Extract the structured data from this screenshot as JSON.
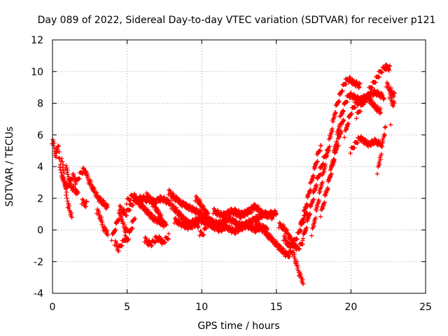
{
  "chart_data": {
    "type": "scatter",
    "title": "Day 089 of 2022, Sidereal Day-to-day VTEC variation (SDTVAR) for receiver p121",
    "xlabel": "GPS time / hours",
    "ylabel": "SDTVAR / TECUs",
    "xlim": [
      0,
      25
    ],
    "ylim": [
      -4,
      12
    ],
    "x_ticks": [
      0,
      5,
      10,
      15,
      20,
      25
    ],
    "y_ticks": [
      -4,
      -2,
      0,
      2,
      4,
      6,
      8,
      10,
      12
    ],
    "grid": true,
    "marker": "+",
    "color": "#ff0000",
    "series": [
      {
        "x": [
          0.0,
          0.05,
          0.1,
          0.15,
          0.2,
          0.25,
          0.3,
          0.35,
          0.4,
          0.5,
          0.6,
          0.7,
          0.8,
          0.9,
          1.0,
          1.1,
          1.2,
          1.3,
          1.4,
          1.5,
          1.6,
          1.7,
          1.8,
          1.9,
          2.0,
          2.1,
          2.2,
          2.3,
          2.4,
          2.5,
          2.6,
          2.7,
          2.8,
          2.9,
          3.0,
          3.1,
          3.2,
          3.3,
          3.4,
          3.5,
          3.6,
          3.7
        ],
        "y": [
          5.6,
          5.5,
          5.3,
          5.0,
          4.8,
          4.7,
          4.9,
          5.2,
          5.4,
          4.0,
          3.5,
          3.2,
          3.0,
          2.8,
          2.7,
          2.9,
          3.1,
          3.3,
          3.4,
          3.2,
          3.0,
          3.2,
          3.4,
          3.6,
          3.7,
          3.8,
          3.7,
          3.5,
          3.2,
          3.0,
          2.8,
          2.6,
          2.5,
          2.3,
          2.1,
          2.0,
          1.9,
          1.8,
          1.7,
          1.6,
          1.5,
          1.4
        ]
      },
      {
        "x": [
          0.6,
          0.65,
          0.7,
          0.75,
          0.8,
          0.85,
          0.9,
          0.95,
          1.0,
          1.05,
          1.1,
          1.15,
          1.2,
          1.25,
          1.3
        ],
        "y": [
          4.5,
          4.2,
          3.9,
          3.6,
          3.2,
          2.8,
          2.5,
          2.2,
          1.9,
          1.6,
          1.4,
          1.2,
          1.1,
          1.0,
          0.9
        ]
      },
      {
        "x": [
          0.9,
          1.0,
          1.1,
          1.2,
          1.3,
          1.4,
          1.5,
          1.6,
          1.7
        ],
        "y": [
          4.0,
          3.6,
          3.2,
          2.9,
          2.7,
          2.6,
          2.5,
          2.4,
          2.3
        ]
      },
      {
        "x": [
          2.0,
          2.1,
          2.2,
          2.3
        ],
        "y": [
          1.8,
          1.7,
          1.6,
          1.7
        ]
      },
      {
        "x": [
          3.0,
          3.1,
          3.2,
          3.3,
          3.4,
          3.5,
          3.6,
          3.7
        ],
        "y": [
          1.2,
          1.0,
          0.8,
          0.5,
          0.2,
          0.0,
          -0.1,
          -0.2
        ]
      },
      {
        "x": [
          4.0,
          4.1,
          4.2,
          4.3,
          4.4,
          4.5,
          4.6,
          4.7,
          4.8,
          4.9,
          5.0
        ],
        "y": [
          -0.5,
          -0.2,
          0.1,
          0.4,
          0.7,
          1.0,
          0.8,
          0.5,
          0.2,
          0.0,
          -0.1
        ]
      },
      {
        "x": [
          4.2,
          4.3,
          4.4,
          4.5,
          4.6,
          4.7,
          4.8,
          4.9,
          5.0,
          5.1,
          5.2,
          5.3,
          5.4,
          5.5
        ],
        "y": [
          -0.8,
          -1.0,
          -1.2,
          -1.1,
          -0.9,
          -0.8,
          -0.6,
          -0.5,
          -0.7,
          -0.4,
          -0.1,
          0.2,
          0.5,
          0.8
        ]
      },
      {
        "x": [
          4.5,
          4.7,
          4.9,
          5.1,
          5.3,
          5.5,
          5.7,
          5.9,
          6.1,
          6.3,
          6.5,
          6.7,
          6.9,
          7.1,
          7.3,
          7.5,
          7.7,
          7.9
        ],
        "y": [
          1.4,
          1.2,
          1.0,
          1.3,
          1.6,
          1.8,
          1.9,
          2.0,
          2.0,
          1.9,
          1.9,
          1.8,
          1.8,
          1.9,
          2.0,
          1.9,
          1.8,
          1.7
        ]
      },
      {
        "x": [
          5.0,
          5.2,
          5.4,
          5.6,
          5.8,
          6.0,
          6.2,
          6.4,
          6.6,
          6.8,
          7.0,
          7.2,
          7.4,
          7.6
        ],
        "y": [
          1.8,
          2.0,
          2.2,
          2.0,
          1.7,
          1.5,
          1.3,
          1.1,
          0.9,
          0.7,
          0.6,
          0.5,
          0.4,
          0.3
        ]
      },
      {
        "x": [
          6.2,
          6.4,
          6.6,
          6.8,
          7.0,
          7.2,
          7.4,
          7.6,
          7.8
        ],
        "y": [
          -0.6,
          -0.8,
          -0.9,
          -0.7,
          -0.5,
          -0.6,
          -0.8,
          -0.6,
          -0.4
        ]
      },
      {
        "x": [
          6.3,
          6.5,
          6.7,
          6.9,
          7.1,
          7.3,
          7.5
        ],
        "y": [
          2.2,
          2.0,
          1.7,
          1.4,
          1.1,
          0.7,
          0.3
        ]
      },
      {
        "x": [
          7.8,
          8.0,
          8.2,
          8.4,
          8.6,
          8.8,
          9.0,
          9.2,
          9.4,
          9.6,
          9.8,
          10.0
        ],
        "y": [
          2.4,
          2.2,
          2.0,
          1.9,
          1.7,
          1.6,
          1.5,
          1.4,
          1.3,
          1.2,
          1.1,
          1.0
        ]
      },
      {
        "x": [
          8.0,
          8.2,
          8.4,
          8.6,
          8.8,
          9.0,
          9.2,
          9.4,
          9.6,
          9.8,
          10.0,
          10.2
        ],
        "y": [
          1.5,
          1.3,
          1.1,
          0.9,
          0.7,
          0.5,
          0.4,
          0.5,
          0.6,
          0.7,
          0.6,
          0.5
        ]
      },
      {
        "x": [
          8.2,
          8.4,
          8.6,
          8.8,
          9.0,
          9.2,
          9.4,
          9.6,
          9.8
        ],
        "y": [
          0.6,
          0.5,
          0.4,
          0.3,
          0.2,
          0.2,
          0.3,
          0.4,
          0.3
        ]
      },
      {
        "x": [
          9.6,
          9.8,
          10.0,
          10.2,
          10.4
        ],
        "y": [
          2.0,
          1.8,
          1.5,
          1.2,
          1.0
        ]
      },
      {
        "x": [
          9.9,
          10.0,
          10.1,
          10.2,
          10.3
        ],
        "y": [
          -0.2,
          -0.3,
          -0.2,
          0.0,
          0.2
        ]
      },
      {
        "x": [
          10.0,
          10.2,
          10.4,
          10.6,
          10.8,
          11.0,
          11.2,
          11.4,
          11.6,
          11.8,
          12.0,
          12.2,
          12.4,
          12.6,
          12.8,
          13.0,
          13.2,
          13.4,
          13.6,
          13.8,
          14.0,
          14.2,
          14.4,
          14.6,
          14.8
        ],
        "y": [
          0.9,
          0.8,
          0.7,
          0.6,
          0.5,
          0.4,
          0.4,
          0.5,
          0.6,
          0.7,
          0.6,
          0.5,
          0.4,
          0.3,
          0.3,
          0.4,
          0.5,
          0.6,
          0.7,
          0.8,
          0.9,
          1.0,
          1.0,
          0.9,
          0.8
        ]
      },
      {
        "x": [
          10.0,
          10.2,
          10.4,
          10.6,
          10.8,
          11.0,
          11.2,
          11.4,
          11.6,
          11.8,
          12.0,
          12.2,
          12.4,
          12.6,
          12.8,
          13.0,
          13.2,
          13.4,
          13.6,
          13.8,
          14.0,
          14.2,
          14.4
        ],
        "y": [
          0.6,
          0.5,
          0.4,
          0.3,
          0.2,
          0.1,
          0.0,
          0.1,
          0.2,
          0.1,
          0.0,
          -0.1,
          0.0,
          0.1,
          0.2,
          0.3,
          0.2,
          0.1,
          0.0,
          0.1,
          0.2,
          0.1,
          0.0
        ]
      },
      {
        "x": [
          10.8,
          11.0,
          11.2,
          11.4,
          11.6,
          11.8,
          12.0,
          12.2,
          12.4,
          12.6,
          12.8,
          13.0,
          13.2,
          13.4,
          13.6,
          13.8,
          14.0,
          14.2,
          14.4,
          14.6,
          14.8,
          15.0
        ],
        "y": [
          1.2,
          1.1,
          1.0,
          0.9,
          1.0,
          1.1,
          1.2,
          1.1,
          1.0,
          0.9,
          1.0,
          1.1,
          1.2,
          1.4,
          1.5,
          1.3,
          1.1,
          1.0,
          0.9,
          1.0,
          1.1,
          1.0
        ]
      },
      {
        "x": [
          12.2,
          12.4,
          12.6,
          12.8,
          13.0,
          13.2,
          13.4
        ],
        "y": [
          1.2,
          1.1,
          1.0,
          1.0,
          1.1,
          1.2,
          1.3
        ]
      },
      {
        "x": [
          13.6,
          13.8,
          14.0,
          14.2,
          14.4,
          14.6,
          14.8,
          15.0,
          15.2,
          15.4,
          15.6,
          15.8,
          16.0,
          16.2,
          16.4
        ],
        "y": [
          0.5,
          0.3,
          0.1,
          -0.1,
          -0.3,
          -0.5,
          -0.7,
          -0.9,
          -1.1,
          -1.3,
          -1.5,
          -1.6,
          -1.4,
          -1.0,
          -0.6
        ]
      },
      {
        "x": [
          15.2,
          15.4,
          15.6,
          15.8,
          16.0,
          16.2,
          16.4,
          16.6,
          16.8
        ],
        "y": [
          0.3,
          0.2,
          0.0,
          -0.3,
          -0.6,
          -0.9,
          -1.2,
          -1.0,
          -0.7
        ]
      },
      {
        "x": [
          15.5,
          15.7,
          15.9,
          16.1,
          16.3,
          16.5,
          16.7,
          16.9,
          17.1
        ],
        "y": [
          -0.5,
          -0.8,
          -1.0,
          -0.9,
          -0.6,
          -0.2,
          0.3,
          0.8,
          1.3
        ]
      },
      {
        "x": [
          16.1,
          16.2,
          16.3,
          16.4,
          16.5,
          16.6,
          16.7,
          16.8
        ],
        "y": [
          -1.4,
          -1.7,
          -2.0,
          -2.3,
          -2.6,
          -2.9,
          -3.1,
          -3.3
        ]
      },
      {
        "x": [
          16.6,
          16.7,
          16.8,
          16.9,
          17.0,
          17.1,
          17.2,
          17.3,
          17.4,
          17.5,
          17.6,
          17.7,
          17.8,
          17.9,
          18.0
        ],
        "y": [
          0.2,
          0.5,
          0.8,
          1.2,
          1.6,
          2.0,
          2.4,
          2.8,
          3.2,
          3.6,
          4.0,
          4.4,
          4.8,
          5.1,
          5.2
        ]
      },
      {
        "x": [
          16.8,
          16.9,
          17.0,
          17.1,
          17.2,
          17.3,
          17.4,
          17.5,
          17.6,
          17.7,
          17.8,
          17.9,
          18.0,
          18.1,
          18.2,
          18.3,
          18.4,
          18.5
        ],
        "y": [
          -0.5,
          -0.2,
          0.2,
          0.6,
          1.0,
          1.4,
          1.8,
          2.2,
          2.6,
          3.0,
          3.3,
          3.6,
          3.9,
          4.2,
          4.5,
          4.7,
          4.9,
          5.0
        ]
      },
      {
        "x": [
          17.4,
          17.5,
          17.6,
          17.7,
          17.8,
          17.9,
          18.0,
          18.1,
          18.2,
          18.3,
          18.4,
          18.5,
          18.6,
          18.7,
          18.8,
          18.9,
          19.0,
          19.1,
          19.2,
          19.3,
          19.4,
          19.5,
          19.6,
          19.7,
          19.8,
          19.9,
          20.0,
          20.2,
          20.4,
          20.6
        ],
        "y": [
          -0.2,
          0.3,
          0.8,
          1.3,
          1.8,
          2.3,
          2.8,
          3.3,
          3.8,
          4.3,
          4.8,
          5.3,
          5.8,
          6.3,
          6.8,
          7.3,
          7.7,
          8.0,
          8.3,
          8.6,
          8.9,
          9.1,
          9.3,
          9.4,
          9.5,
          9.5,
          9.4,
          9.3,
          9.2,
          9.1
        ]
      },
      {
        "x": [
          18.0,
          18.1,
          18.2,
          18.3,
          18.4,
          18.5,
          18.6,
          18.7,
          18.8,
          18.9,
          19.0,
          19.1,
          19.2,
          19.3,
          19.4,
          19.5
        ],
        "y": [
          1.0,
          1.4,
          1.8,
          2.2,
          2.6,
          3.0,
          3.4,
          3.8,
          4.2,
          4.6,
          5.0,
          5.4,
          5.8,
          6.2,
          6.6,
          7.0
        ]
      },
      {
        "x": [
          18.6,
          18.7,
          18.8,
          18.9,
          19.0,
          19.1,
          19.2,
          19.3,
          19.4,
          19.5,
          19.6,
          19.7,
          19.8,
          19.9,
          20.0,
          20.2,
          20.4,
          20.6,
          20.8,
          21.0,
          21.2,
          21.4,
          21.6,
          21.8,
          22.0,
          22.2
        ],
        "y": [
          3.5,
          4.0,
          4.5,
          5.0,
          5.5,
          6.0,
          6.5,
          7.0,
          7.4,
          7.7,
          8.0,
          8.2,
          8.4,
          8.5,
          8.5,
          8.4,
          8.3,
          8.2,
          8.3,
          8.4,
          8.5,
          8.6,
          8.7,
          8.6,
          8.5,
          8.4
        ]
      },
      {
        "x": [
          19.6,
          19.7,
          19.8,
          19.9,
          20.0,
          20.1,
          20.2,
          20.3,
          20.4,
          20.6,
          20.8,
          21.0
        ],
        "y": [
          6.0,
          6.4,
          6.8,
          7.1,
          7.4,
          7.6,
          7.8,
          7.9,
          8.0,
          8.1,
          8.2,
          8.2
        ]
      },
      {
        "x": [
          20.0,
          20.2,
          20.4,
          20.6,
          20.8,
          21.0,
          21.2,
          21.4,
          21.6,
          21.8,
          22.0
        ],
        "y": [
          5.0,
          5.3,
          5.6,
          5.8,
          5.7,
          5.5,
          5.4,
          5.5,
          5.6,
          5.5,
          5.4
        ]
      },
      {
        "x": [
          20.4,
          20.6,
          20.8,
          21.0,
          21.2,
          21.4,
          21.6,
          21.8,
          22.0
        ],
        "y": [
          7.2,
          7.6,
          8.0,
          8.4,
          8.3,
          8.0,
          7.8,
          7.6,
          7.5
        ]
      },
      {
        "x": [
          21.2,
          21.4,
          21.6,
          21.8,
          22.0,
          22.2,
          22.4,
          22.6
        ],
        "y": [
          8.8,
          9.1,
          9.4,
          9.7,
          10.0,
          10.2,
          10.3,
          10.2
        ]
      },
      {
        "x": [
          21.8,
          21.9,
          22.0,
          22.1,
          22.2,
          22.3
        ],
        "y": [
          3.7,
          4.2,
          4.8,
          5.4,
          6.0,
          6.4
        ]
      },
      {
        "x": [
          22.4,
          22.5,
          22.6,
          22.7,
          22.8,
          22.9
        ],
        "y": [
          9.2,
          9.0,
          8.9,
          8.7,
          8.6,
          8.5
        ]
      },
      {
        "x": [
          22.6,
          22.7,
          22.8,
          22.9
        ],
        "y": [
          8.5,
          8.2,
          8.0,
          7.9
        ]
      },
      {
        "x": [
          22.7
        ],
        "y": [
          6.8
        ]
      }
    ]
  }
}
